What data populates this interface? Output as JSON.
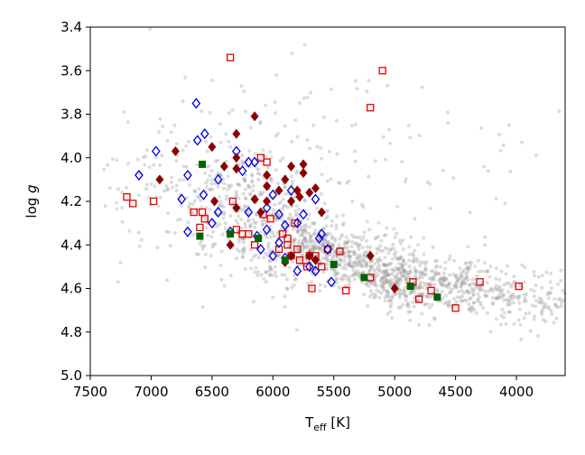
{
  "chart_data": {
    "type": "scatter",
    "xlabel": "T",
    "xlabel_sub": "eff",
    "xlabel_unit": "[K]",
    "ylabel": "log g",
    "xlim": [
      7500,
      3600
    ],
    "ylim": [
      5.0,
      3.4
    ],
    "x_ticks": [
      7500,
      7000,
      6500,
      6000,
      5500,
      5000,
      4500,
      4000
    ],
    "x_tick_labels": [
      "7500",
      "7000",
      "6500",
      "6000",
      "5500",
      "5000",
      "4500",
      "4000"
    ],
    "y_ticks": [
      3.4,
      3.6,
      3.8,
      4.0,
      4.2,
      4.4,
      4.6,
      4.8,
      5.0
    ],
    "y_tick_labels": [
      "3.4",
      "3.6",
      "3.8",
      "4.0",
      "4.2",
      "4.4",
      "4.6",
      "4.8",
      "5.0"
    ],
    "grid": false,
    "colors": {
      "background_points": "#9a9a9a",
      "red_squares": "#e60000",
      "blue_diamonds": "#0000e6",
      "darkred_diamonds": "#8b0000",
      "green_squares": "#006400"
    },
    "background_cloud": {
      "marker": "circle",
      "approx_count": 1800,
      "note_density_band": [
        [
          7300,
          4.15
        ],
        [
          6500,
          4.2
        ],
        [
          6000,
          4.3
        ],
        [
          5500,
          4.45
        ],
        [
          5000,
          4.55
        ],
        [
          4500,
          4.6
        ],
        [
          3700,
          4.65
        ]
      ]
    },
    "series": [
      {
        "marker": "open-square",
        "color": "#e60000",
        "points": [
          [
            6350,
            3.54
          ],
          [
            5100,
            3.6
          ],
          [
            5200,
            3.77
          ],
          [
            7200,
            4.18
          ],
          [
            7150,
            4.21
          ],
          [
            6980,
            4.2
          ],
          [
            6650,
            4.25
          ],
          [
            6580,
            4.25
          ],
          [
            6600,
            4.32
          ],
          [
            6560,
            4.28
          ],
          [
            6300,
            4.33
          ],
          [
            6250,
            4.35
          ],
          [
            6100,
            4.0
          ],
          [
            6050,
            4.02
          ],
          [
            6080,
            4.26
          ],
          [
            6020,
            4.28
          ],
          [
            5920,
            4.35
          ],
          [
            5880,
            4.4
          ],
          [
            5850,
            4.45
          ],
          [
            5820,
            4.3
          ],
          [
            5800,
            4.42
          ],
          [
            5780,
            4.47
          ],
          [
            5720,
            4.5
          ],
          [
            5700,
            4.45
          ],
          [
            5680,
            4.6
          ],
          [
            5600,
            4.5
          ],
          [
            5550,
            4.42
          ],
          [
            5450,
            4.43
          ],
          [
            5400,
            4.61
          ],
          [
            5200,
            4.55
          ],
          [
            4850,
            4.57
          ],
          [
            4800,
            4.65
          ],
          [
            4700,
            4.61
          ],
          [
            4500,
            4.69
          ],
          [
            4300,
            4.57
          ],
          [
            3980,
            4.59
          ],
          [
            6330,
            4.2
          ],
          [
            6200,
            4.35
          ],
          [
            5950,
            4.42
          ],
          [
            5650,
            4.45
          ],
          [
            6150,
            4.4
          ],
          [
            5880,
            4.37
          ]
        ]
      },
      {
        "marker": "open-diamond",
        "color": "#0000e6",
        "points": [
          [
            6630,
            3.75
          ],
          [
            6560,
            3.89
          ],
          [
            6620,
            3.92
          ],
          [
            6960,
            3.97
          ],
          [
            7100,
            4.08
          ],
          [
            6700,
            4.08
          ],
          [
            6570,
            4.17
          ],
          [
            6750,
            4.19
          ],
          [
            6700,
            4.34
          ],
          [
            6450,
            4.1
          ],
          [
            6300,
            3.97
          ],
          [
            6250,
            4.06
          ],
          [
            6200,
            4.02
          ],
          [
            6150,
            4.02
          ],
          [
            6050,
            4.23
          ],
          [
            6000,
            4.17
          ],
          [
            5950,
            4.26
          ],
          [
            5850,
            4.15
          ],
          [
            5800,
            4.3
          ],
          [
            5750,
            4.26
          ],
          [
            5650,
            4.19
          ],
          [
            5600,
            4.35
          ],
          [
            5550,
            4.42
          ],
          [
            5520,
            4.57
          ],
          [
            5800,
            4.52
          ],
          [
            5700,
            4.5
          ],
          [
            5650,
            4.52
          ],
          [
            5900,
            4.46
          ],
          [
            6100,
            4.42
          ],
          [
            6200,
            4.25
          ],
          [
            6500,
            4.3
          ],
          [
            6450,
            4.25
          ],
          [
            6050,
            4.33
          ],
          [
            5900,
            4.31
          ],
          [
            5950,
            4.39
          ],
          [
            5620,
            4.37
          ],
          [
            6000,
            4.45
          ],
          [
            6350,
            4.34
          ],
          [
            6130,
            4.36
          ]
        ]
      },
      {
        "marker": "filled-diamond",
        "color": "#8b0000",
        "points": [
          [
            6150,
            3.81
          ],
          [
            6300,
            3.89
          ],
          [
            6500,
            3.95
          ],
          [
            6800,
            3.97
          ],
          [
            6930,
            4.1
          ],
          [
            6300,
            4.0
          ],
          [
            6400,
            4.04
          ],
          [
            6300,
            4.05
          ],
          [
            6050,
            4.08
          ],
          [
            6050,
            4.13
          ],
          [
            5950,
            4.15
          ],
          [
            5900,
            4.1
          ],
          [
            5850,
            4.04
          ],
          [
            5750,
            4.03
          ],
          [
            5750,
            4.07
          ],
          [
            5800,
            4.15
          ],
          [
            5700,
            4.16
          ],
          [
            5650,
            4.14
          ],
          [
            6050,
            4.2
          ],
          [
            6150,
            4.19
          ],
          [
            5850,
            4.2
          ],
          [
            5780,
            4.18
          ],
          [
            6300,
            4.23
          ],
          [
            6100,
            4.25
          ],
          [
            5600,
            4.25
          ],
          [
            6350,
            4.4
          ],
          [
            5850,
            4.45
          ],
          [
            5900,
            4.48
          ],
          [
            5700,
            4.45
          ],
          [
            5650,
            4.47
          ],
          [
            5200,
            4.45
          ],
          [
            5000,
            4.6
          ],
          [
            6480,
            4.2
          ]
        ]
      },
      {
        "marker": "filled-square",
        "color": "#006400",
        "points": [
          [
            6580,
            4.03
          ],
          [
            6600,
            4.36
          ],
          [
            6350,
            4.35
          ],
          [
            6120,
            4.37
          ],
          [
            5900,
            4.47
          ],
          [
            5500,
            4.49
          ],
          [
            5250,
            4.55
          ],
          [
            4870,
            4.59
          ],
          [
            4650,
            4.64
          ]
        ]
      }
    ]
  }
}
